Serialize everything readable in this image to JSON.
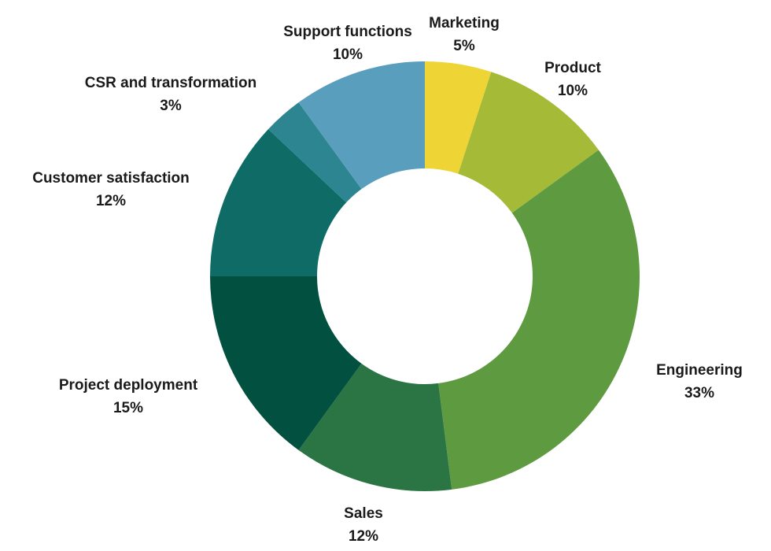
{
  "chart_data": {
    "type": "pie",
    "donut": true,
    "title": "",
    "slices": [
      {
        "label": "Marketing",
        "value": 5,
        "display": "5%",
        "color": "#eed535"
      },
      {
        "label": "Product",
        "value": 10,
        "display": "10%",
        "color": "#a5bb38"
      },
      {
        "label": "Engineering",
        "value": 33,
        "display": "33%",
        "color": "#5e9b40"
      },
      {
        "label": "Sales",
        "value": 12,
        "display": "12%",
        "color": "#2b7544"
      },
      {
        "label": "Project deployment",
        "value": 15,
        "display": "15%",
        "color": "#02503f"
      },
      {
        "label": "Customer satisfaction",
        "value": 12,
        "display": "12%",
        "color": "#0e6b66"
      },
      {
        "label": "CSR and transformation",
        "value": 3,
        "display": "3%",
        "color": "#2c8590"
      },
      {
        "label": "Support functions",
        "value": 10,
        "display": "10%",
        "color": "#5a9ebe"
      }
    ]
  }
}
